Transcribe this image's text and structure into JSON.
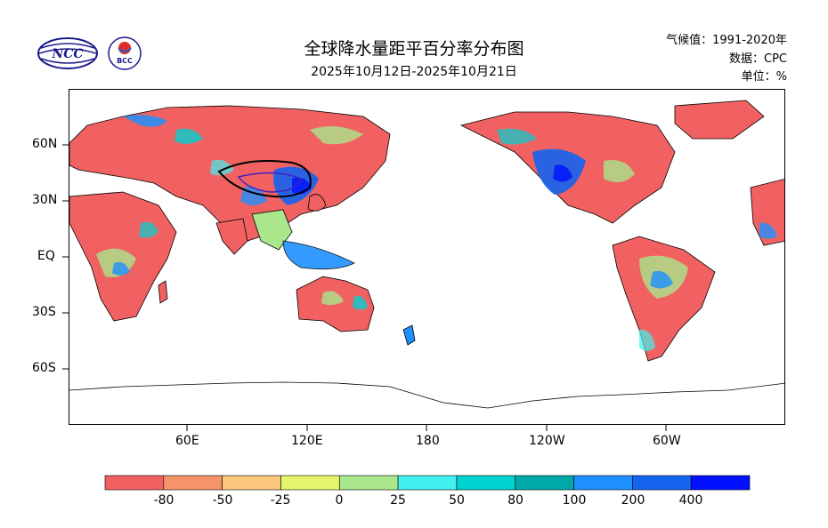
{
  "header": {
    "title": "全球降水量距平百分率分布图",
    "subtitle": "2025年10月12日-2025年10月21日",
    "climate_period": "气候值：1991-2020年",
    "data_source": "数据：CPC",
    "unit": "单位：%"
  },
  "logos": {
    "ncc_text": "NCC",
    "bcc_text": "BCC"
  },
  "map": {
    "lat_labels": [
      "60N",
      "30N",
      "EQ",
      "30S",
      "60S"
    ],
    "lon_labels": [
      "60E",
      "120E",
      "180",
      "120W",
      "60W"
    ]
  },
  "colorbar": {
    "labels": [
      "-80",
      "-50",
      "-25",
      "0",
      "25",
      "50",
      "80",
      "100",
      "200",
      "400"
    ],
    "colors": [
      "#f26161",
      "#f5946b",
      "#fbc87e",
      "#e5f56b",
      "#a9e68c",
      "#41f0f0",
      "#00d2d2",
      "#00a8a8",
      "#1e90ff",
      "#1464f0",
      "#0010ff"
    ]
  }
}
